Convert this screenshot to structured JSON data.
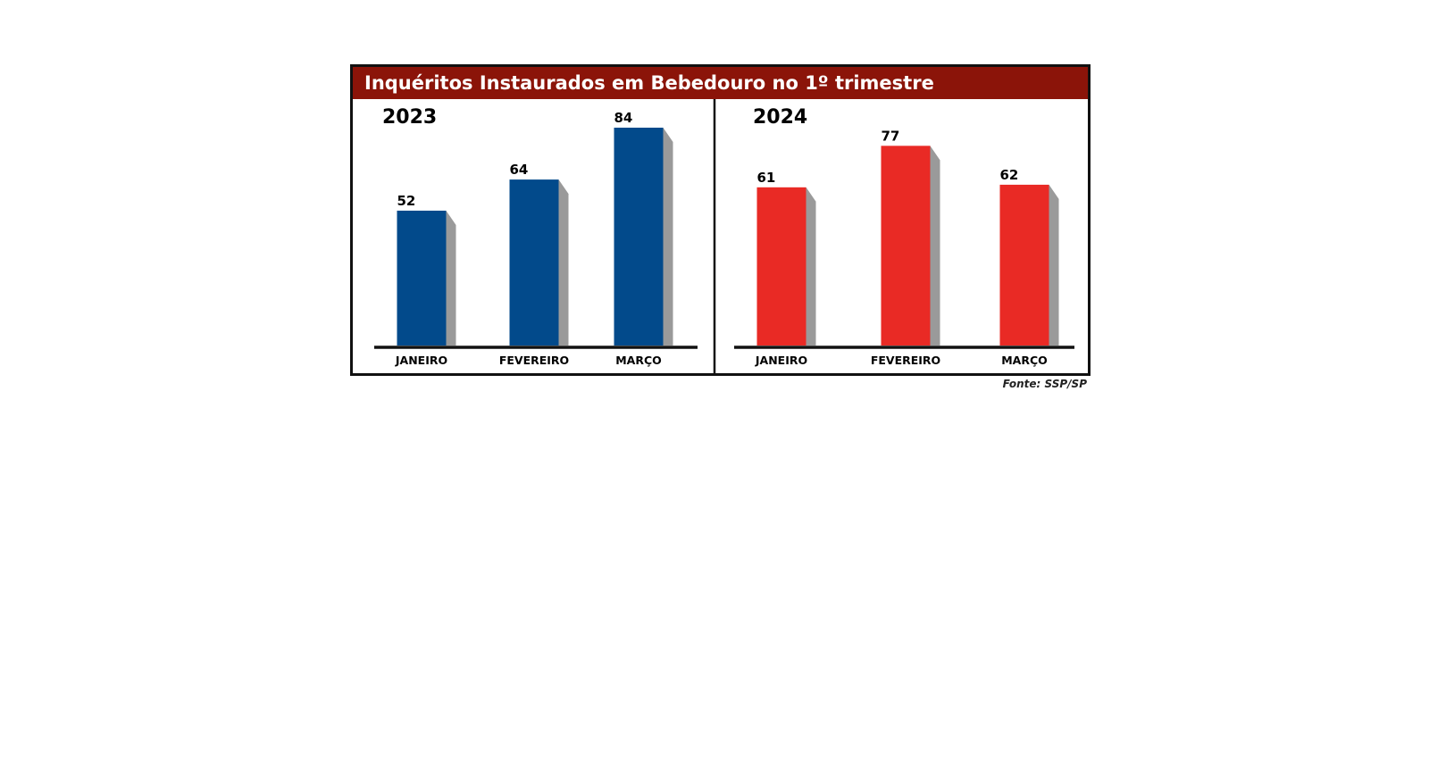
{
  "title": "Inquéritos Instaurados em Bebedouro no 1º trimestre",
  "source": "Fonte: SSP/SP",
  "colors": {
    "title_bar": "#8b1409",
    "series_2023": "#024a8b",
    "series_2024": "#e92a25",
    "shadow": "#9a9a9a",
    "frame": "#111111"
  },
  "chart_data": [
    {
      "type": "bar",
      "title": "2023",
      "categories": [
        "JANEIRO",
        "FEVEREIRO",
        "MARÇO"
      ],
      "values": [
        52,
        64,
        84
      ],
      "value_labels": [
        "52",
        "64",
        "84"
      ],
      "ylim": [
        0,
        84
      ],
      "grid": false,
      "color": "#024a8b"
    },
    {
      "type": "bar",
      "title": "2024",
      "categories": [
        "JANEIRO",
        "FEVEREIRO",
        "MARÇO"
      ],
      "values": [
        61,
        77,
        62
      ],
      "value_labels": [
        "61",
        "77",
        "62"
      ],
      "ylim": [
        0,
        84
      ],
      "grid": false,
      "color": "#e92a25"
    }
  ]
}
